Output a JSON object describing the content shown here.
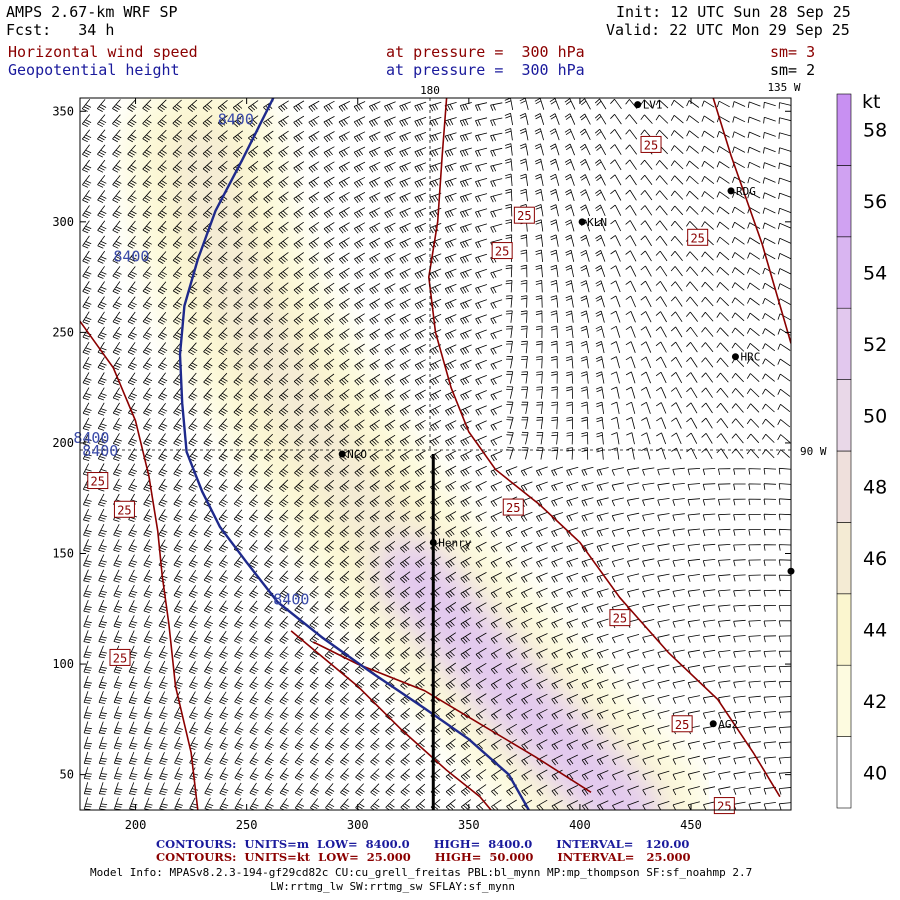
{
  "header": {
    "model": "AMPS 2.67-km WRF SP",
    "fcst": "Fcst:   34 h",
    "init": "Init: 12 UTC Sun 28 Sep 25",
    "valid": "Valid: 22 UTC Mon 29 Sep 25",
    "field1": "Horizontal wind speed",
    "field2": "Geopotential height",
    "level1": "at pressure =  300 hPa",
    "level2": "at pressure =  300 hPa",
    "sm1": "sm= 3",
    "sm2": "sm= 2"
  },
  "map": {
    "lon_labels": {
      "top_180": "180",
      "top_135w": "135 W",
      "right_90w": "90 W"
    },
    "stations": [
      {
        "name": "LV1",
        "x": 426,
        "y": 353
      },
      {
        "name": "RDG",
        "x": 468,
        "y": 314
      },
      {
        "name": "KLN",
        "x": 401,
        "y": 300
      },
      {
        "name": "HRC",
        "x": 470,
        "y": 239
      },
      {
        "name": "NCO",
        "x": 293,
        "y": 195
      },
      {
        "name": "Henry",
        "x": 334,
        "y": 155
      },
      {
        "name": "AG2",
        "x": 460,
        "y": 73
      },
      {
        "name": "",
        "x": 495,
        "y": 142
      }
    ],
    "contour_labels_height": [
      "8400",
      "8400",
      "8400",
      "8400",
      "8400"
    ],
    "contour_labels_speed": [
      "25",
      "25",
      "25",
      "25",
      "25",
      "25",
      "25",
      "25",
      "25",
      "25",
      "25"
    ]
  },
  "chart_data": {
    "type": "heatmap",
    "title": "Horizontal wind speed / Geopotential height at 300 hPa",
    "x_ticks": [
      200,
      250,
      300,
      350,
      400,
      450
    ],
    "y_ticks": [
      50,
      100,
      150,
      200,
      250,
      300,
      350
    ],
    "xlim": [
      175,
      495
    ],
    "ylim": [
      34,
      356
    ],
    "colorbar": {
      "unit": "kt",
      "levels": [
        40,
        42,
        44,
        46,
        48,
        50,
        52,
        54,
        56,
        58
      ],
      "colors": [
        "#ffffff",
        "#fdfbe0",
        "#fbf6cf",
        "#f4ebd4",
        "#efe0dc",
        "#e9d8e8",
        "#e2c8ee",
        "#d9b5f1",
        "#d0a2f2",
        "#c890f2"
      ]
    },
    "height_contour_value_m": 8400,
    "speed_contour_value_kt": 25,
    "height_contour": [
      [
        262,
        356
      ],
      [
        248,
        328
      ],
      [
        236,
        305
      ],
      [
        228,
        283
      ],
      [
        222,
        262
      ],
      [
        220,
        240
      ],
      [
        221,
        218
      ],
      [
        223,
        196
      ],
      [
        230,
        178
      ],
      [
        238,
        162
      ],
      [
        250,
        146
      ],
      [
        264,
        128
      ],
      [
        284,
        112
      ],
      [
        305,
        97
      ],
      [
        330,
        80
      ],
      [
        350,
        66
      ],
      [
        368,
        50
      ],
      [
        377,
        34
      ]
    ],
    "speed_contours": [
      [
        [
          175,
          255
        ],
        [
          190,
          234
        ],
        [
          200,
          210
        ],
        [
          206,
          185
        ],
        [
          210,
          160
        ],
        [
          212,
          140
        ],
        [
          215,
          118
        ],
        [
          218,
          90
        ],
        [
          225,
          60
        ],
        [
          228,
          34
        ]
      ],
      [
        [
          340,
          356
        ],
        [
          338,
          330
        ],
        [
          336,
          300
        ],
        [
          332,
          275
        ],
        [
          335,
          250
        ],
        [
          342,
          225
        ],
        [
          350,
          205
        ],
        [
          362,
          188
        ],
        [
          382,
          172
        ],
        [
          400,
          155
        ],
        [
          418,
          130
        ],
        [
          440,
          105
        ],
        [
          462,
          84
        ],
        [
          478,
          60
        ],
        [
          490,
          40
        ]
      ],
      [
        [
          460,
          356
        ],
        [
          468,
          330
        ],
        [
          482,
          290
        ],
        [
          495,
          245
        ]
      ],
      [
        [
          280,
          110
        ],
        [
          300,
          100
        ],
        [
          330,
          88
        ],
        [
          355,
          73
        ],
        [
          380,
          58
        ],
        [
          405,
          42
        ]
      ],
      [
        [
          270,
          115
        ],
        [
          300,
          90
        ],
        [
          320,
          70
        ],
        [
          340,
          52
        ],
        [
          355,
          40
        ],
        [
          360,
          34
        ]
      ]
    ],
    "jet_core": [
      [
        230,
        330
      ],
      [
        235,
        300
      ],
      [
        245,
        270
      ],
      [
        260,
        240
      ],
      [
        280,
        205
      ],
      [
        300,
        175
      ],
      [
        325,
        140
      ],
      [
        350,
        110
      ],
      [
        375,
        80
      ],
      [
        400,
        55
      ],
      [
        420,
        34
      ]
    ],
    "section_line": [
      [
        334,
        195
      ],
      [
        334,
        34
      ]
    ]
  },
  "footer": {
    "line1": "CONTOURS:  UNITS=m  LOW=  8400.0      HIGH=  8400.0      INTERVAL=   120.00",
    "line2": "CONTOURS:  UNITS=kt  LOW=  25.000      HIGH=  50.000      INTERVAL=   25.000",
    "model_info": "Model Info: MPASv8.2.3-194-gf29cd82c CU:cu_grell_freitas PBL:bl_mynn MP:mp_thompson SF:sf_noahmp 2.7",
    "model_info2": "LW:rrtmg_lw SW:rrtmg_sw SFLAY:sf_mynn"
  }
}
